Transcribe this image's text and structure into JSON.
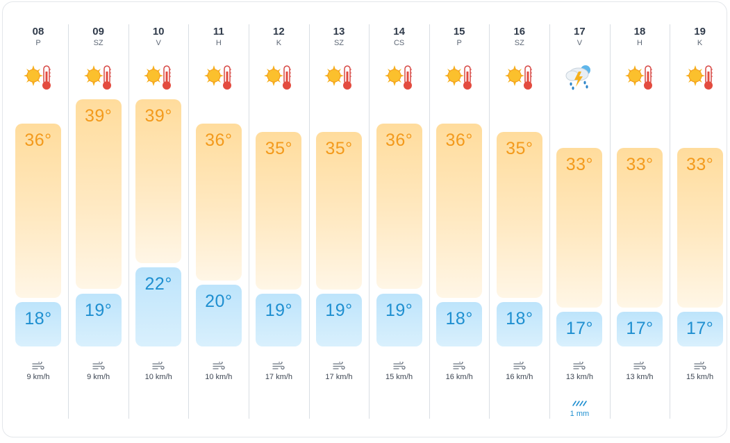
{
  "colors": {
    "max": "#f39a1c",
    "min": "#1e8fd0",
    "maxBar": "#ffdc9c",
    "minBar": "#bde4fb"
  },
  "days": [
    {
      "num": "08",
      "name": "P",
      "icon": "sun-thermometer-icon",
      "max": "36°",
      "min": "18°",
      "wind": "9 km/h"
    },
    {
      "num": "09",
      "name": "SZ",
      "icon": "sun-thermometer-icon",
      "max": "39°",
      "min": "19°",
      "wind": "9 km/h"
    },
    {
      "num": "10",
      "name": "V",
      "icon": "sun-thermometer-icon",
      "max": "39°",
      "min": "22°",
      "wind": "10 km/h"
    },
    {
      "num": "11",
      "name": "H",
      "icon": "sun-thermometer-icon",
      "max": "36°",
      "min": "20°",
      "wind": "10 km/h"
    },
    {
      "num": "12",
      "name": "K",
      "icon": "sun-thermometer-icon",
      "max": "35°",
      "min": "19°",
      "wind": "17 km/h"
    },
    {
      "num": "13",
      "name": "SZ",
      "icon": "sun-thermometer-icon",
      "max": "35°",
      "min": "19°",
      "wind": "17 km/h"
    },
    {
      "num": "14",
      "name": "CS",
      "icon": "sun-thermometer-icon",
      "max": "36°",
      "min": "19°",
      "wind": "15 km/h"
    },
    {
      "num": "15",
      "name": "P",
      "icon": "sun-thermometer-icon",
      "max": "36°",
      "min": "18°",
      "wind": "16 km/h"
    },
    {
      "num": "16",
      "name": "SZ",
      "icon": "sun-thermometer-icon",
      "max": "35°",
      "min": "18°",
      "wind": "16 km/h"
    },
    {
      "num": "17",
      "name": "V",
      "icon": "thunderstorm-icon",
      "max": "33°",
      "min": "17°",
      "wind": "13 km/h",
      "rain": "1 mm"
    },
    {
      "num": "18",
      "name": "H",
      "icon": "sun-thermometer-icon",
      "max": "33°",
      "min": "17°",
      "wind": "13 km/h"
    },
    {
      "num": "19",
      "name": "K",
      "icon": "sun-thermometer-icon",
      "max": "33°",
      "min": "17°",
      "wind": "15 km/h"
    }
  ]
}
